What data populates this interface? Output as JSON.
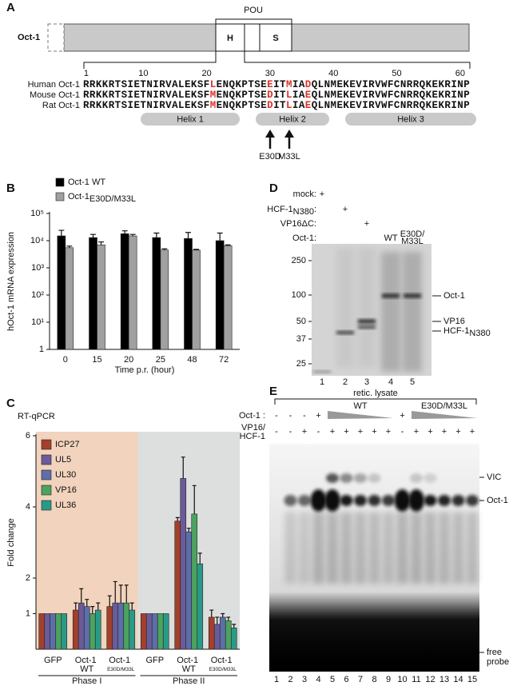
{
  "panel_a": {
    "label": "A",
    "protein": "Oct-1",
    "domain": "POU",
    "boxes": [
      "H",
      "S"
    ],
    "positions": [
      1,
      10,
      20,
      30,
      40,
      50,
      60
    ],
    "sequences": [
      {
        "name": "Human Oct-1",
        "residues": "RRKKRTSIETNIRVALEKSFLENQKPTSEEITMIADQLNMEKEVIRVWFCNRRQKEKRINP",
        "highlight": [
          20,
          29,
          32,
          35
        ]
      },
      {
        "name": "Mouse Oct-1",
        "residues": "RRKKRTSIETNIRVALEKSFMENQKPTSEDITLIAEQLNMEKEVIRVWFCNRRQKEKRINP",
        "highlight": [
          20,
          29,
          32,
          35
        ]
      },
      {
        "name": "Rat Oct-1",
        "residues": "RRKKRTSIETNIRVALEKSFMENQKPTSEDITLIAEQLNMEKEVIRVWFCNRRQKEKRINP",
        "highlight": [
          20,
          29,
          32,
          35
        ]
      }
    ],
    "highlight_color": "#e0302a",
    "helices": [
      "Helix 1",
      "Helix 2",
      "Helix 3"
    ],
    "mutations": [
      "E30D",
      "M33L"
    ]
  },
  "chart_data": [
    {
      "type": "bar",
      "label": "B",
      "log_scale": true,
      "ylabel": "hOct-1 mRNA expression",
      "xlabel": "Time p.r. (hour)",
      "categories": [
        "0",
        "15",
        "20",
        "25",
        "48",
        "72"
      ],
      "ylim": [
        1,
        100000
      ],
      "yticks": [
        1,
        {
          "value": 10,
          "label": "10¹"
        },
        {
          "value": 100,
          "label": "10²"
        },
        {
          "value": 1000,
          "label": "10³"
        },
        {
          "value": 10000,
          "label": "10⁴"
        },
        {
          "value": 100000,
          "label": "10⁵"
        }
      ],
      "series": [
        {
          "name": "Oct-1 WT",
          "color": "#000000",
          "values": [
            15000,
            13000,
            18000,
            13000,
            12000,
            10000
          ],
          "errors": [
            9000,
            4000,
            5000,
            6000,
            8000,
            9000
          ]
        },
        {
          "name": "Oct-1",
          "subscript": "E30D/M33L",
          "color": "#a0a0a0",
          "values": [
            5500,
            7000,
            15000,
            4500,
            4500,
            6500
          ],
          "errors": [
            800,
            2000,
            2000,
            500,
            300,
            500
          ]
        }
      ]
    },
    {
      "type": "bar",
      "label": "C",
      "title": "RT-qPCR",
      "ylabel": "Fold change",
      "categories": [
        "GFP",
        "Oct-1 WT",
        "Oct-1 E30D/M33L",
        "GFP",
        "Oct-1 WT",
        "Oct-1 E30D/M33L"
      ],
      "phases": [
        {
          "name": "Phase I",
          "color": "#f2d3bd"
        },
        {
          "name": "Phase II",
          "color": "#dcdfdd"
        }
      ],
      "ylim": [
        0,
        6
      ],
      "yticks": [
        1,
        2,
        4,
        6
      ],
      "series": [
        {
          "name": "ICP27",
          "color": "#a3402c",
          "values": [
            1,
            1.1,
            1.2,
            1,
            3.6,
            0.9
          ],
          "errors": [
            null,
            0.2,
            0.3,
            null,
            0.1,
            0.2
          ]
        },
        {
          "name": "UL5",
          "color": "#6b5b9a",
          "values": [
            1,
            1.3,
            1.3,
            1,
            4.8,
            0.7
          ],
          "errors": [
            null,
            0.4,
            0.6,
            null,
            0.6,
            0.2
          ]
        },
        {
          "name": "UL30",
          "color": "#5d6fa8",
          "values": [
            1,
            1.2,
            1.3,
            1,
            3.3,
            0.9
          ],
          "errors": [
            null,
            0.2,
            0.5,
            null,
            0.1,
            0.1
          ]
        },
        {
          "name": "VP16",
          "color": "#4ca35e",
          "values": [
            1,
            1.0,
            1.3,
            1,
            3.8,
            0.8
          ],
          "errors": [
            null,
            0.2,
            0.5,
            null,
            0.8,
            0.1
          ]
        },
        {
          "name": "UL36",
          "color": "#2a9a88",
          "values": [
            1,
            1.1,
            1.1,
            1,
            2.4,
            0.6
          ],
          "errors": [
            null,
            0.2,
            0.2,
            null,
            0.3,
            0.1
          ]
        }
      ]
    }
  ],
  "panel_d": {
    "label": "D",
    "rows": [
      {
        "text": "mock:"
      },
      {
        "text": "HCF-1",
        "subscript": "N380",
        "suffix": ":"
      },
      {
        "text": "VP16ΔC:"
      },
      {
        "text": "Oct-1:"
      }
    ],
    "entries": [
      [
        "+",
        null,
        null,
        null,
        null
      ],
      [
        null,
        "+",
        null,
        null,
        null
      ],
      [
        null,
        null,
        "+",
        null,
        null
      ],
      [
        null,
        null,
        null,
        "WT",
        "E30D/M33L"
      ]
    ],
    "markers": [
      250,
      100,
      50,
      37,
      25
    ],
    "bands": [
      {
        "text": "Oct-1"
      },
      {
        "text": "VP16"
      },
      {
        "text": "HCF-1",
        "subscript": "N380"
      }
    ],
    "lanes": [
      1,
      2,
      3,
      4,
      5
    ]
  },
  "panel_e": {
    "label": "E",
    "lysate": "retic. lysate",
    "rows": [
      {
        "label": "Oct-1 :",
        "entries": [
          "-",
          "-",
          "-",
          "+",
          null,
          null,
          null,
          null,
          null,
          "+",
          null,
          null,
          null,
          null,
          null
        ]
      },
      {
        "label": "VP16/HCF-1",
        "entries": [
          "-",
          "-",
          "+",
          "-",
          "+",
          "+",
          "+",
          "+",
          "+",
          "-",
          "+",
          "+",
          "+",
          "+",
          "+"
        ]
      }
    ],
    "titrations": [
      "WT",
      "E30D/M33L"
    ],
    "bands": [
      "VIC",
      "Oct-1",
      "free probe"
    ],
    "lanes": [
      1,
      2,
      3,
      4,
      5,
      6,
      7,
      8,
      9,
      10,
      11,
      12,
      13,
      14,
      15
    ]
  }
}
